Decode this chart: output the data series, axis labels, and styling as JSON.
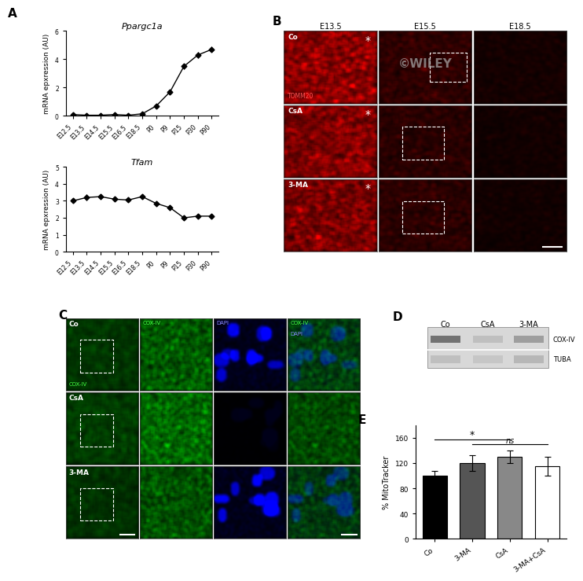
{
  "panel_A_title1": "Ppargc1a",
  "panel_A_title2": "Tfam",
  "xtick_labels": [
    "E12.5",
    "E13.5",
    "E14.5",
    "E15.5",
    "E16.5",
    "E18.5",
    "P0",
    "P9",
    "P15",
    "P30",
    "P90"
  ],
  "ppargc1a_y": [
    0.1,
    0.05,
    0.05,
    0.1,
    0.05,
    0.15,
    0.7,
    1.7,
    3.5,
    4.3,
    4.7
  ],
  "ppargc1a_err": [
    0.05,
    0.03,
    0.03,
    0.04,
    0.03,
    0.05,
    0.1,
    0.15,
    0.2,
    0.2,
    0.2
  ],
  "ppargc1a_ylim": [
    0,
    6
  ],
  "ppargc1a_yticks": [
    0,
    2,
    4,
    6
  ],
  "tfam_y": [
    3.0,
    3.2,
    3.25,
    3.1,
    3.05,
    3.25,
    2.85,
    2.6,
    2.0,
    2.1,
    2.1
  ],
  "tfam_err": [
    0.1,
    0.2,
    0.1,
    0.1,
    0.1,
    0.1,
    0.1,
    0.1,
    0.1,
    0.1,
    0.08
  ],
  "tfam_ylim": [
    0,
    5
  ],
  "tfam_yticks": [
    0,
    1,
    2,
    3,
    4,
    5
  ],
  "bar_categories": [
    "Co",
    "3-MA",
    "CsA",
    "3-MA+CsA"
  ],
  "bar_values": [
    100,
    120,
    130,
    115
  ],
  "bar_errors": [
    8,
    12,
    10,
    15
  ],
  "bar_colors": [
    "#000000",
    "#555555",
    "#888888",
    "#ffffff"
  ],
  "bar_ylabel": "% MitoTracker",
  "bar_yticks": [
    0,
    40,
    80,
    120,
    160
  ],
  "bar_ylim": [
    0,
    180
  ],
  "B_col_labels": [
    "E13.5",
    "E15.5",
    "E18.5"
  ],
  "B_row_labels": [
    "Co",
    "CsA",
    "3-MA"
  ],
  "D_labels": [
    "Co",
    "CsA",
    "3-MA"
  ],
  "D_bands": [
    "COX-IV",
    "TUBA"
  ],
  "cox_band_darkness": [
    0.55,
    0.25,
    0.38
  ],
  "tuba_band_darkness": [
    0.25,
    0.22,
    0.28
  ]
}
